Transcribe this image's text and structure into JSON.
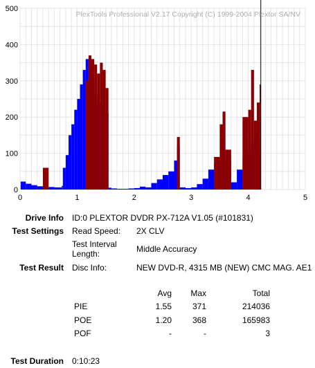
{
  "chart_data": {
    "type": "bar",
    "watermark": "PlexTools Professional V2.17 Copyright (C) 1999-2004 Plextor SA/NV",
    "xlim": [
      0,
      5
    ],
    "ylim": [
      0,
      500
    ],
    "x_ticks": [
      "0",
      "1",
      "2",
      "3",
      "4",
      "5"
    ],
    "y_ticks": [
      "0",
      "100",
      "200",
      "300",
      "400",
      "500"
    ],
    "grid": true,
    "marker_x": 4.22,
    "series": [
      {
        "key": "pie",
        "color": "#0000ff"
      },
      {
        "key": "poe",
        "color": "#8b0000"
      }
    ],
    "x": [
      0.01,
      0.1,
      0.2,
      0.3,
      0.4,
      0.5,
      0.6,
      0.7,
      0.73,
      0.75,
      0.8,
      0.85,
      0.9,
      0.95,
      1.0,
      1.05,
      1.1,
      1.15,
      1.2,
      1.25,
      1.3,
      1.35,
      1.4,
      1.45,
      1.5,
      1.55,
      1.6,
      1.7,
      1.8,
      1.9,
      2.0,
      2.1,
      2.2,
      2.3,
      2.4,
      2.5,
      2.6,
      2.7,
      2.75,
      2.8,
      2.9,
      3.0,
      3.1,
      3.2,
      3.3,
      3.4,
      3.5,
      3.55,
      3.6,
      3.7,
      3.8,
      3.9,
      4.0,
      4.05,
      4.1,
      4.15,
      4.2
    ],
    "pie": [
      22,
      16,
      12,
      9,
      8,
      7,
      6,
      6,
      10,
      60,
      95,
      150,
      180,
      220,
      250,
      290,
      330,
      360,
      330,
      300,
      260,
      240,
      230,
      220,
      210,
      5,
      3,
      2,
      2,
      3,
      4,
      8,
      6,
      18,
      28,
      40,
      50,
      80,
      120,
      6,
      4,
      6,
      15,
      30,
      55,
      70,
      90,
      110,
      80,
      20,
      55,
      90,
      100,
      130,
      150,
      140,
      100
    ],
    "poe": [
      0,
      0,
      0,
      0,
      60,
      0,
      0,
      0,
      0,
      0,
      0,
      0,
      0,
      0,
      0,
      0,
      0,
      300,
      370,
      360,
      345,
      320,
      350,
      330,
      280,
      0,
      0,
      0,
      0,
      0,
      0,
      0,
      0,
      0,
      0,
      0,
      0,
      0,
      145,
      0,
      0,
      0,
      0,
      0,
      0,
      90,
      180,
      215,
      110,
      0,
      0,
      200,
      220,
      330,
      190,
      240,
      290
    ]
  },
  "info": {
    "drive_info_label": "Drive Info",
    "drive_info_value": "ID:0 PLEXTOR DVDR PX-712A V1.05 (#101831)",
    "test_settings_label": "Test Settings",
    "read_speed_label": "Read Speed:",
    "read_speed_value": "2X CLV",
    "test_interval_label_1": "Test Interval",
    "test_interval_label_2": "Length:",
    "test_interval_value": "Middle Accuracy",
    "test_result_label": "Test Result",
    "disc_info_label": "Disc Info:",
    "disc_info_value": "NEW DVD-R, 4315 MB (NEW) CMC MAG. AE1",
    "col_avg": "Avg",
    "col_max": "Max",
    "col_total": "Total",
    "rows": [
      {
        "name": "PIE",
        "avg": "1.55",
        "max": "371",
        "total": "214036"
      },
      {
        "name": "POE",
        "avg": "1.20",
        "max": "368",
        "total": "165983"
      },
      {
        "name": "POF",
        "avg": "-",
        "max": "-",
        "total": "3"
      }
    ],
    "test_duration_label": "Test Duration",
    "test_duration_value": "0:10:23"
  }
}
